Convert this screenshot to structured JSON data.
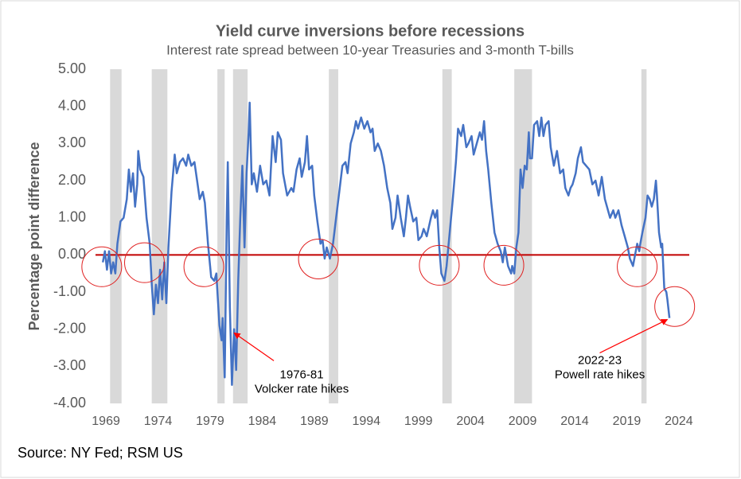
{
  "chart_data": {
    "type": "line",
    "title": "Yield curve inversions before recessions",
    "subtitle": "Interest rate spread between 10-year Treasuries and 3-month T-bills",
    "y_label": "Percentage point difference",
    "source": "Source: NY Fed; RSM US",
    "color": "#4472c4",
    "xlim": [
      1968,
      2025
    ],
    "xticks": [
      1969,
      1974,
      1979,
      1984,
      1989,
      1994,
      1999,
      2004,
      2009,
      2014,
      2019,
      2024
    ],
    "ylim": [
      -4,
      5
    ],
    "yticks": [
      {
        "value": 5,
        "label": "5.00"
      },
      {
        "value": 4,
        "label": "4.00"
      },
      {
        "value": 3,
        "label": "3.00"
      },
      {
        "value": 2,
        "label": "2.00"
      },
      {
        "value": 1,
        "label": "1.00"
      },
      {
        "value": 0,
        "label": "0.00"
      },
      {
        "value": -1,
        "label": "-1.00"
      },
      {
        "value": -2,
        "label": "-2.00"
      },
      {
        "value": -3,
        "label": "-3.00"
      },
      {
        "value": -4,
        "label": "-4.00"
      }
    ],
    "zero_line": {
      "value": 0,
      "color": "#c00000"
    },
    "recession_color": "#d9d9d9",
    "recessions": [
      [
        1969.4,
        1970.5
      ],
      [
        1973.4,
        1974.9
      ],
      [
        1979.7,
        1980.4
      ],
      [
        1981.2,
        1982.6
      ],
      [
        1990.4,
        1991.3
      ],
      [
        2001.3,
        2002.2
      ],
      [
        2008.2,
        2009.9
      ],
      [
        2020.4,
        2020.9
      ]
    ],
    "x": [
      1968.7,
      1968.9,
      1969.1,
      1969.3,
      1969.5,
      1969.7,
      1969.9,
      1970.1,
      1970.4,
      1970.7,
      1971.0,
      1971.2,
      1971.4,
      1971.6,
      1971.8,
      1972.0,
      1972.1,
      1972.3,
      1972.6,
      1972.9,
      1973.2,
      1973.4,
      1973.6,
      1973.8,
      1974.0,
      1974.2,
      1974.4,
      1974.6,
      1974.8,
      1975.0,
      1975.3,
      1975.6,
      1975.8,
      1976.1,
      1976.4,
      1976.7,
      1976.9,
      1977.2,
      1977.5,
      1977.8,
      1978.0,
      1978.3,
      1978.5,
      1978.8,
      1979.1,
      1979.4,
      1979.6,
      1979.9,
      1980.1,
      1980.2,
      1980.4,
      1980.6,
      1980.7,
      1980.9,
      1981.1,
      1981.3,
      1981.5,
      1981.7,
      1981.9,
      1982.1,
      1982.3,
      1982.5,
      1982.7,
      1982.8,
      1983.0,
      1983.2,
      1983.5,
      1983.8,
      1984.1,
      1984.4,
      1984.7,
      1985.0,
      1985.3,
      1985.5,
      1985.8,
      1986.0,
      1986.4,
      1986.8,
      1987.0,
      1987.3,
      1987.6,
      1987.8,
      1988.1,
      1988.3,
      1988.5,
      1988.8,
      1989.0,
      1989.3,
      1989.6,
      1989.8,
      1990.0,
      1990.2,
      1990.5,
      1990.8,
      1991.1,
      1991.4,
      1991.7,
      1992.0,
      1992.2,
      1992.5,
      1992.8,
      1993.0,
      1993.2,
      1993.5,
      1993.8,
      1994.1,
      1994.4,
      1994.6,
      1994.8,
      1995.1,
      1995.4,
      1995.7,
      1996.0,
      1996.3,
      1996.5,
      1996.8,
      1997.0,
      1997.3,
      1997.6,
      1997.8,
      1998.0,
      1998.2,
      1998.5,
      1998.8,
      1999.0,
      1999.3,
      1999.5,
      1999.8,
      2000.2,
      2000.4,
      2000.6,
      2000.8,
      2001.0,
      2001.2,
      2001.5,
      2001.7,
      2002.0,
      2002.3,
      2002.6,
      2002.8,
      2003.1,
      2003.3,
      2003.6,
      2003.8,
      2004.1,
      2004.3,
      2004.6,
      2004.9,
      2005.1,
      2005.3,
      2005.5,
      2005.7,
      2006.0,
      2006.3,
      2006.6,
      2006.9,
      2007.1,
      2007.3,
      2007.6,
      2007.9,
      2008.0,
      2008.2,
      2008.4,
      2008.6,
      2008.8,
      2009.0,
      2009.2,
      2009.4,
      2009.6,
      2009.7,
      2009.9,
      2010.1,
      2010.4,
      2010.6,
      2010.8,
      2011.0,
      2011.2,
      2011.5,
      2011.7,
      2012.0,
      2012.3,
      2012.6,
      2012.9,
      2013.1,
      2013.4,
      2013.6,
      2013.8,
      2014.1,
      2014.3,
      2014.6,
      2014.8,
      2015.1,
      2015.4,
      2015.7,
      2016.0,
      2016.3,
      2016.6,
      2016.9,
      2017.1,
      2017.4,
      2017.7,
      2017.9,
      2018.2,
      2018.5,
      2018.8,
      2019.1,
      2019.3,
      2019.6,
      2019.8,
      2020.0,
      2020.2,
      2020.3,
      2020.5,
      2020.8,
      2021.0,
      2021.2,
      2021.4,
      2021.6,
      2021.8,
      2021.9,
      2022.1,
      2022.3,
      2022.4,
      2022.6,
      2022.8,
      2022.9,
      2023.1
    ],
    "values": [
      -0.2,
      0.1,
      -0.4,
      0.1,
      -0.5,
      -0.2,
      -0.5,
      0.3,
      0.9,
      1.0,
      1.5,
      2.3,
      1.7,
      2.2,
      1.3,
      1.9,
      2.8,
      2.3,
      2.1,
      1.0,
      0.3,
      -0.8,
      -1.6,
      -0.8,
      -1.3,
      -0.4,
      -1.2,
      -0.2,
      -1.3,
      0.2,
      1.7,
      2.7,
      2.2,
      2.5,
      2.6,
      2.4,
      2.7,
      2.4,
      2.5,
      1.9,
      1.5,
      1.7,
      1.4,
      0.3,
      -0.6,
      -0.7,
      -0.5,
      -1.9,
      -2.3,
      -1.7,
      -3.3,
      1.0,
      2.5,
      -1.4,
      -3.5,
      -2.0,
      -3.1,
      -0.7,
      1.0,
      2.4,
      0.2,
      2.2,
      3.3,
      4.1,
      1.9,
      2.2,
      1.7,
      2.4,
      1.9,
      2.0,
      1.6,
      3.2,
      2.5,
      3.3,
      3.1,
      2.2,
      1.6,
      1.8,
      1.7,
      2.3,
      2.6,
      2.1,
      2.5,
      3.2,
      2.3,
      2.4,
      1.6,
      0.9,
      0.3,
      0.4,
      -0.1,
      0.2,
      -0.1,
      0.3,
      1.0,
      1.7,
      2.4,
      2.5,
      2.2,
      3.0,
      3.3,
      3.6,
      3.4,
      3.7,
      3.4,
      3.6,
      3.3,
      3.4,
      2.8,
      3.0,
      2.8,
      2.4,
      1.8,
      1.4,
      0.7,
      1.0,
      1.6,
      1.0,
      0.5,
      1.0,
      1.6,
      1.3,
      0.9,
      1.0,
      0.4,
      0.5,
      0.7,
      0.5,
      1.0,
      1.2,
      1.0,
      1.2,
      0.2,
      -0.5,
      -0.7,
      -0.3,
      0.6,
      1.5,
      2.5,
      3.4,
      3.2,
      3.5,
      2.9,
      3.0,
      3.2,
      2.7,
      3.0,
      3.3,
      3.1,
      3.6,
      2.8,
      2.3,
      1.4,
      0.6,
      0.3,
      0.1,
      -0.2,
      0.2,
      -0.3,
      -0.5,
      -0.3,
      -0.5,
      0.2,
      0.6,
      2.3,
      1.8,
      2.4,
      2.3,
      3.3,
      2.6,
      2.6,
      3.5,
      3.6,
      3.2,
      3.7,
      3.2,
      3.5,
      3.6,
      2.9,
      2.4,
      2.8,
      2.2,
      2.3,
      1.8,
      1.6,
      1.8,
      1.9,
      2.2,
      2.6,
      2.9,
      2.5,
      2.4,
      2.3,
      1.9,
      2.0,
      1.6,
      2.1,
      1.5,
      1.3,
      1.0,
      1.2,
      1.0,
      1.2,
      0.8,
      0.5,
      0.2,
      -0.1,
      -0.3,
      0.0,
      0.3,
      0.1,
      0.3,
      0.6,
      1.0,
      1.6,
      1.5,
      1.3,
      1.5,
      2.0,
      1.6,
      0.6,
      0.2,
      0.3,
      -0.9,
      -1.0,
      -1.2,
      -1.7
    ],
    "highlight_color": "#e02020",
    "highlights": [
      {
        "x": 1968.6,
        "y": -0.32
      },
      {
        "x": 1972.7,
        "y": -0.21
      },
      {
        "x": 1978.4,
        "y": -0.32
      },
      {
        "x": 1989.4,
        "y": -0.11
      },
      {
        "x": 2001.0,
        "y": -0.28
      },
      {
        "x": 2007.2,
        "y": -0.28
      },
      {
        "x": 2020.0,
        "y": -0.32
      },
      {
        "x": 2023.6,
        "y": -1.39
      }
    ],
    "annotations": [
      {
        "lines": [
          "1976-81",
          "Volcker rate hikes"
        ],
        "x": 1981.3,
        "y": -2.1
      },
      {
        "lines": [
          "2022-23",
          "Powell rate hikes"
        ],
        "x": 2022.9,
        "y": -1.74
      }
    ]
  }
}
